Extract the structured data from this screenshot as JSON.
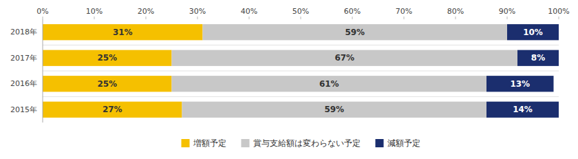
{
  "chart_data": {
    "type": "bar",
    "orientation": "horizontal",
    "stacked": true,
    "data_labels": true,
    "legend": "bottom",
    "grid": false,
    "categories": [
      "2018年",
      "2017年",
      "2016年",
      "2015年"
    ],
    "series": [
      {
        "name": "増額予定",
        "color": "#F5C000",
        "values": [
          31,
          25,
          25,
          27
        ],
        "value_labels": [
          "31%",
          "25%",
          "25%",
          "27%"
        ]
      },
      {
        "name": "賞与支給額は変わらない予定",
        "color": "#C8C8C8",
        "values": [
          59,
          67,
          61,
          59
        ],
        "value_labels": [
          "59%",
          "67%",
          "61%",
          "59%"
        ]
      },
      {
        "name": "減額予定",
        "color": "#1B2E6E",
        "values": [
          10,
          8,
          13,
          14
        ],
        "value_labels": [
          "10%",
          "8%",
          "13%",
          "14%"
        ]
      }
    ],
    "xlim": [
      0,
      100
    ],
    "xticks": [
      {
        "value": 0,
        "label": "0%"
      },
      {
        "value": 10,
        "label": "10%"
      },
      {
        "value": 20,
        "label": "20%"
      },
      {
        "value": 30,
        "label": "30%"
      },
      {
        "value": 40,
        "label": "40%"
      },
      {
        "value": 50,
        "label": "50%"
      },
      {
        "value": 60,
        "label": "60%"
      },
      {
        "value": 70,
        "label": "70%"
      },
      {
        "value": 80,
        "label": "80%"
      },
      {
        "value": 90,
        "label": "90%"
      },
      {
        "value": 100,
        "label": "100%"
      }
    ]
  }
}
